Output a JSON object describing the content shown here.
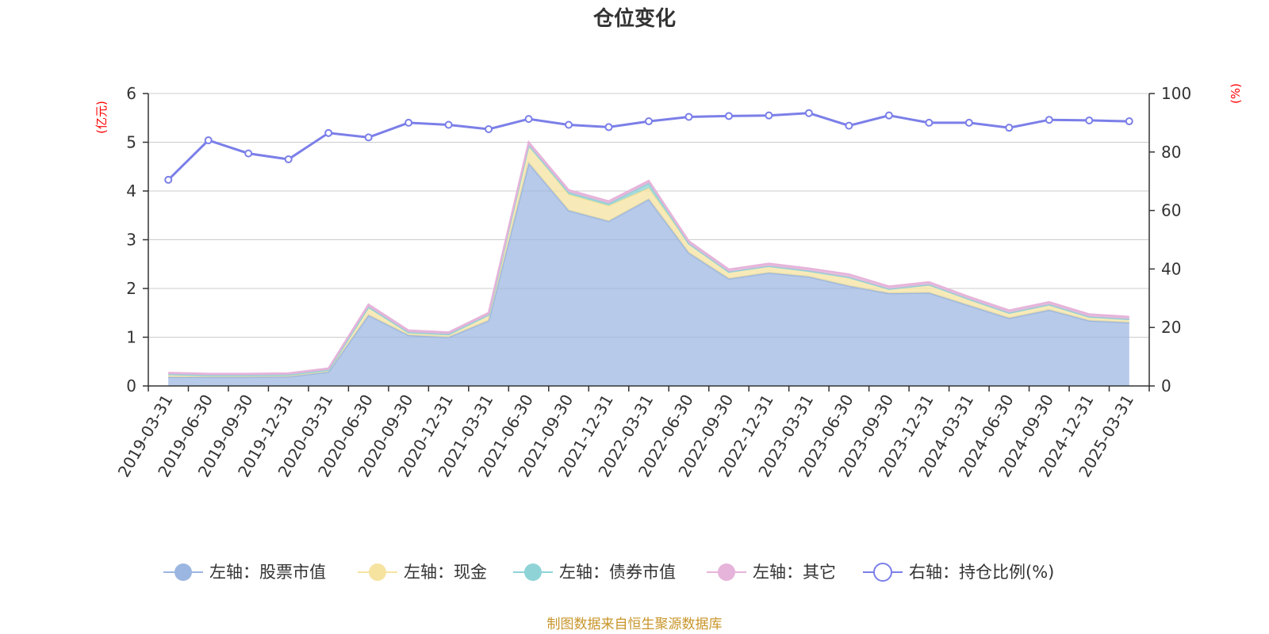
{
  "chart_data": {
    "type": "area",
    "title": "仓位变化",
    "left_axis_unit": "(亿元)",
    "right_axis_unit": "(%)",
    "ylim_left": [
      0,
      6
    ],
    "yticks_left": [
      0,
      1,
      2,
      3,
      4,
      5,
      6
    ],
    "ylim_right": [
      0,
      100
    ],
    "yticks_right": [
      0,
      20,
      40,
      60,
      80,
      100
    ],
    "grid": true,
    "legend_position": "bottom",
    "categories": [
      "2019-03-31",
      "2019-06-30",
      "2019-09-30",
      "2019-12-31",
      "2020-03-31",
      "2020-06-30",
      "2020-09-30",
      "2020-12-31",
      "2021-03-31",
      "2021-06-30",
      "2021-09-30",
      "2021-12-31",
      "2022-03-31",
      "2022-06-30",
      "2022-09-30",
      "2022-12-31",
      "2023-03-31",
      "2023-06-30",
      "2023-09-30",
      "2023-12-31",
      "2024-03-31",
      "2024-06-30",
      "2024-09-30",
      "2024-12-31",
      "2025-03-31"
    ],
    "series": [
      {
        "name": "左轴：股票市值",
        "axis": "left",
        "color": "#9bb6e0",
        "values": [
          0.18,
          0.18,
          0.18,
          0.19,
          0.29,
          1.45,
          1.04,
          1.0,
          1.34,
          4.57,
          3.6,
          3.38,
          3.83,
          2.73,
          2.2,
          2.32,
          2.24,
          2.05,
          1.9,
          1.91,
          1.65,
          1.39,
          1.56,
          1.34,
          1.3
        ]
      },
      {
        "name": "左轴：现金",
        "axis": "left",
        "color": "#f6e3a0",
        "values": [
          0.06,
          0.04,
          0.04,
          0.04,
          0.04,
          0.17,
          0.06,
          0.06,
          0.12,
          0.37,
          0.33,
          0.32,
          0.23,
          0.19,
          0.14,
          0.14,
          0.12,
          0.18,
          0.09,
          0.17,
          0.13,
          0.11,
          0.11,
          0.08,
          0.07
        ]
      },
      {
        "name": "左轴：债券市值",
        "axis": "left",
        "color": "#8fd3d7",
        "values": [
          0,
          0,
          0,
          0,
          0,
          0,
          0,
          0,
          0,
          0,
          0.04,
          0.04,
          0.1,
          0,
          0,
          0,
          0,
          0,
          0,
          0,
          0,
          0,
          0,
          0,
          0
        ]
      },
      {
        "name": "左轴：其它",
        "axis": "left",
        "color": "#e6b3da",
        "values": [
          0.03,
          0.03,
          0.03,
          0.03,
          0.03,
          0.05,
          0.04,
          0.04,
          0.04,
          0.06,
          0.05,
          0.05,
          0.05,
          0.05,
          0.05,
          0.05,
          0.05,
          0.06,
          0.05,
          0.05,
          0.05,
          0.05,
          0.05,
          0.05,
          0.05
        ]
      },
      {
        "name": "右轴：持仓比例(%)",
        "axis": "right",
        "type": "line",
        "color": "#7b7fe8",
        "values": [
          70.5,
          84,
          79.5,
          77.5,
          86.5,
          85,
          90,
          89.3,
          87.8,
          91.3,
          89.3,
          88.5,
          90.5,
          92,
          92.3,
          92.5,
          93.3,
          89,
          92.5,
          90,
          90,
          88.3,
          91,
          90.8,
          90.5
        ]
      }
    ]
  },
  "footer": "制图数据来自恒生聚源数据库"
}
